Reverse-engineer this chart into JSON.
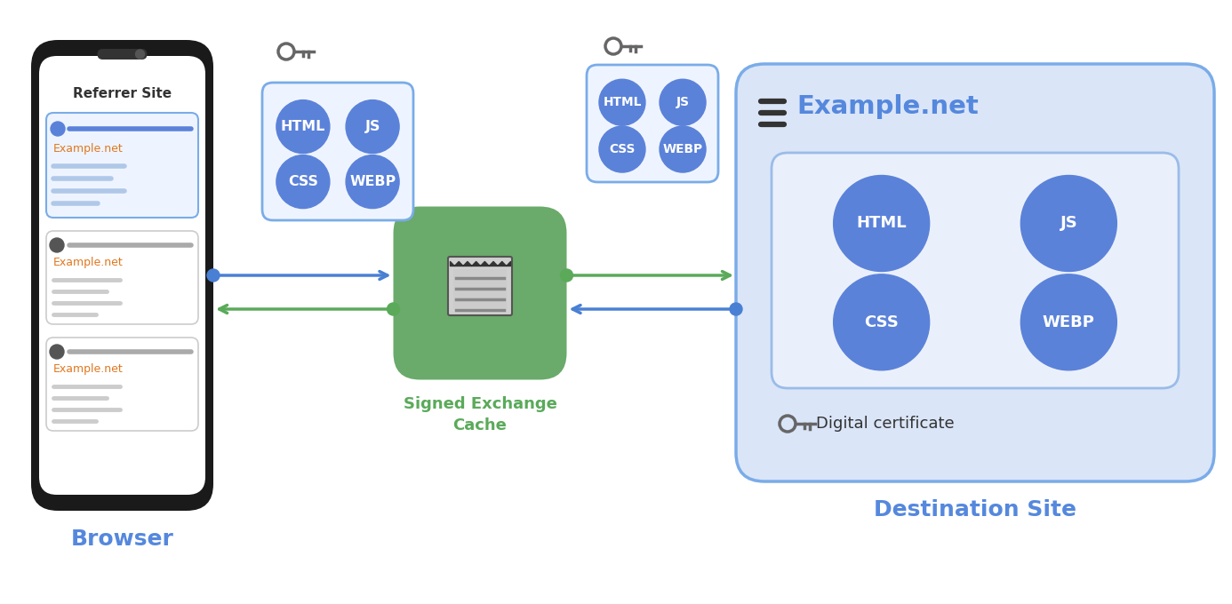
{
  "bg_color": "#ffffff",
  "blue_circle_color": "#5b82d9",
  "green_box_color": "#6aaa6a",
  "dest_box_color": "#dae5f8",
  "dest_box_border": "#7aace8",
  "inner_box_color": "#eaf0fb",
  "inner_box_border": "#9abce8",
  "small_box_color": "#eef4ff",
  "small_box_border": "#7aace8",
  "arrow_blue": "#4a80d4",
  "arrow_green": "#5aaa5a",
  "label_blue": "#5588dd",
  "label_green": "#5aaa5a",
  "label_orange": "#e07820",
  "phone_color": "#1a1a1a",
  "phone_screen": "#ffffff",
  "card_border": "#cccccc",
  "card_blue_border": "#7aace8",
  "card_blue_fill": "#eef4ff",
  "browser_label": "Browser",
  "dest_label": "Destination Site",
  "referrer_text": "Referrer Site",
  "example_net": "Example.net",
  "digital_cert": "Digital certificate"
}
